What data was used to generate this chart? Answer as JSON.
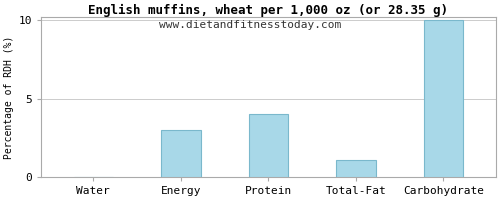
{
  "title": "English muffins, wheat per 1,000 oz (or 28.35 g)",
  "subtitle": "www.dietandfitnesstoday.com",
  "categories": [
    "Water",
    "Energy",
    "Protein",
    "Total-Fat",
    "Carbohydrate"
  ],
  "values": [
    0,
    3.0,
    4.0,
    1.1,
    10.0
  ],
  "bar_color": "#a8d8e8",
  "bar_edge_color": "#7ab8cc",
  "ylabel": "Percentage of RDH (%)",
  "ylim": [
    0,
    10
  ],
  "yticks": [
    0,
    5,
    10
  ],
  "background_color": "#ffffff",
  "title_fontsize": 9,
  "subtitle_fontsize": 8,
  "ylabel_fontsize": 7,
  "tick_fontsize": 8,
  "grid_color": "#cccccc",
  "bar_width": 0.45
}
